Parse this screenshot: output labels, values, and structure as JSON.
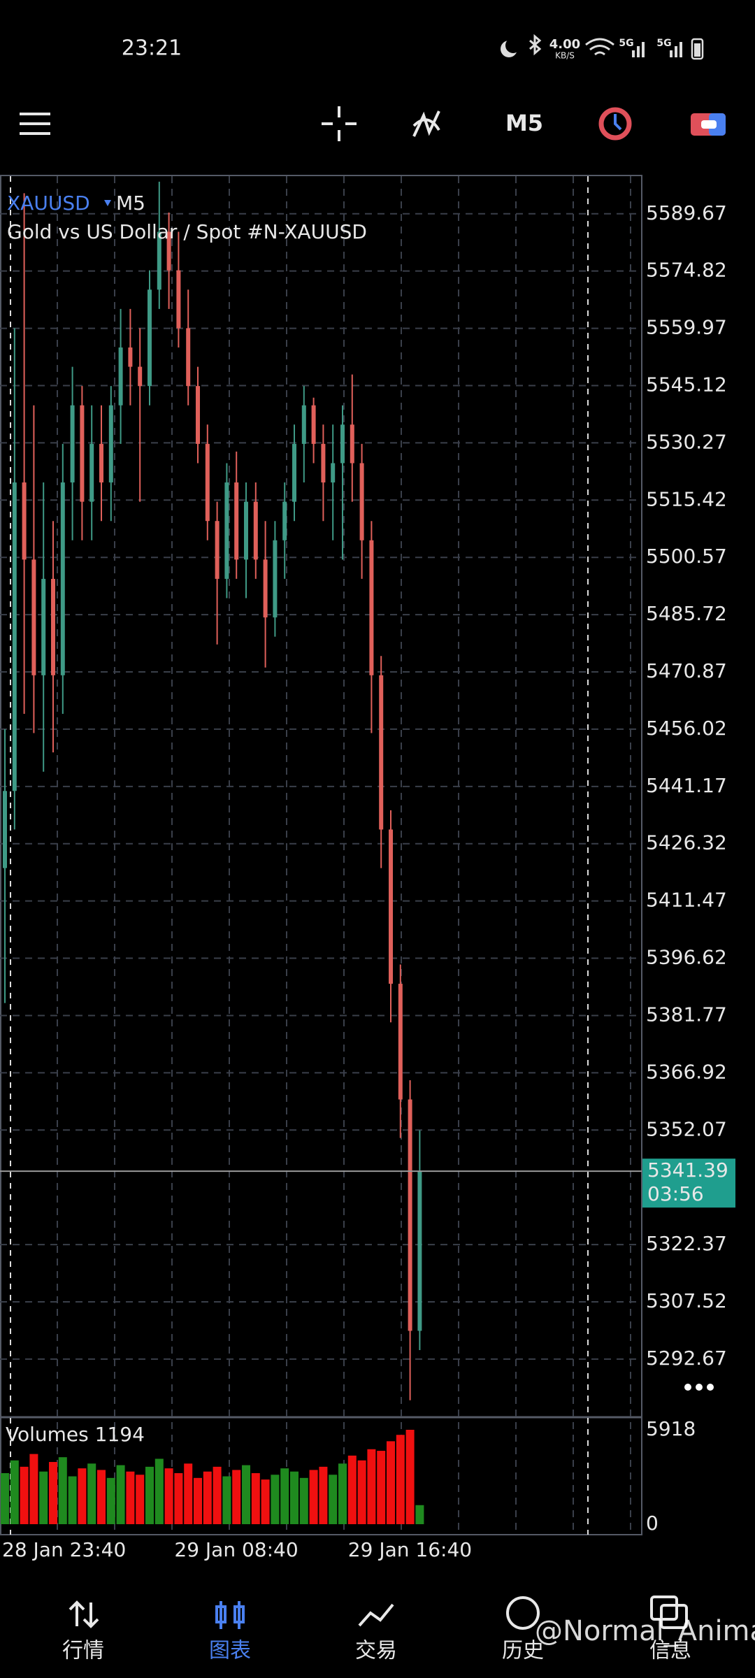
{
  "status_bar": {
    "time": "23:21",
    "speed": "4.00",
    "speed_unit": "KB/S",
    "network": [
      "5G",
      "5G"
    ]
  },
  "toolbar": {
    "timeframe": "M5"
  },
  "chart_data": {
    "type": "candlestick",
    "symbol": "XAUUSD",
    "timeframe": "M5",
    "description": "Gold vs US Dollar / Spot #N-XAUUSD",
    "categories": [
      "28 Jan 23:40",
      null,
      null,
      null,
      null,
      null,
      null,
      null,
      null,
      null,
      null,
      null,
      null,
      null,
      null,
      null,
      null,
      null,
      "29 Jan 08:40",
      null,
      null,
      null,
      null,
      null,
      null,
      null,
      null,
      null,
      null,
      null,
      null,
      null,
      null,
      null,
      null,
      null,
      "29 Jan 16:40",
      null,
      null,
      null,
      null,
      null,
      null,
      null
    ],
    "open": [
      5420,
      5440,
      5520,
      5500,
      5470,
      5495,
      5470,
      5520,
      5540,
      5515,
      5530,
      5520,
      5540,
      5555,
      5550,
      5545,
      5570,
      5585,
      5575,
      5560,
      5545,
      5530,
      5510,
      5495,
      5520,
      5500,
      5515,
      5500,
      5485,
      5505,
      5515,
      5530,
      5540,
      5530,
      5520,
      5525,
      5535,
      5525,
      5505,
      5470,
      5430,
      5390,
      5360,
      5300
    ],
    "high": [
      5456,
      5560,
      5595,
      5540,
      5520,
      5510,
      5530,
      5550,
      5545,
      5540,
      5540,
      5545,
      5565,
      5565,
      5560,
      5575,
      5598,
      5590,
      5585,
      5570,
      5550,
      5535,
      5515,
      5525,
      5528,
      5520,
      5520,
      5510,
      5510,
      5520,
      5535,
      5545,
      5542,
      5535,
      5535,
      5540,
      5548,
      5530,
      5510,
      5475,
      5435,
      5395,
      5365,
      5352
    ],
    "low": [
      5385,
      5430,
      5460,
      5455,
      5445,
      5450,
      5460,
      5505,
      5505,
      5505,
      5510,
      5510,
      5530,
      5540,
      5515,
      5540,
      5565,
      5565,
      5555,
      5540,
      5525,
      5505,
      5478,
      5490,
      5495,
      5490,
      5495,
      5472,
      5480,
      5495,
      5510,
      5520,
      5525,
      5510,
      5505,
      5500,
      5515,
      5495,
      5455,
      5420,
      5380,
      5350,
      5282,
      5295
    ],
    "close": [
      5440,
      5520,
      5500,
      5470,
      5495,
      5470,
      5520,
      5540,
      5515,
      5530,
      5520,
      5540,
      5555,
      5550,
      5545,
      5570,
      5585,
      5575,
      5560,
      5545,
      5530,
      5510,
      5495,
      5520,
      5500,
      5515,
      5500,
      5485,
      5505,
      5515,
      5530,
      5540,
      5530,
      5520,
      5525,
      5535,
      5525,
      5505,
      5470,
      5430,
      5390,
      5360,
      5300,
      5341.39
    ],
    "up_color": "#3f9a86",
    "down_color": "#e0605a",
    "ylim": [
      5277.6,
      5599.6
    ],
    "yticks": [
      5589.67,
      5574.82,
      5559.97,
      5545.12,
      5530.27,
      5515.42,
      5500.57,
      5485.72,
      5470.87,
      5456.02,
      5441.17,
      5426.32,
      5411.47,
      5396.62,
      5381.77,
      5366.92,
      5352.07,
      5322.37,
      5307.52,
      5292.67
    ],
    "current_price": 5341.39,
    "countdown": "03:56",
    "grid": true,
    "volume": {
      "label": "Volumes",
      "current": 1194,
      "values": [
        3200,
        4000,
        3600,
        4400,
        3300,
        3900,
        4200,
        3000,
        3500,
        3800,
        3400,
        2900,
        3700,
        3300,
        3100,
        3600,
        4100,
        3500,
        3200,
        3800,
        2900,
        3300,
        3600,
        3000,
        3400,
        3700,
        3200,
        2800,
        3100,
        3500,
        3300,
        2900,
        3400,
        3600,
        3100,
        3800,
        4300,
        4000,
        4700,
        4600,
        5200,
        5600,
        5918,
        1194
      ],
      "up_color": "#1f8a1f",
      "down_color": "#f01010",
      "ylim": [
        0,
        6575
      ],
      "yticks": [
        5918,
        0
      ]
    }
  },
  "nav": [
    "行情",
    "图表",
    "交易",
    "历史",
    "信息"
  ],
  "watermark": "@Normal_Animal"
}
